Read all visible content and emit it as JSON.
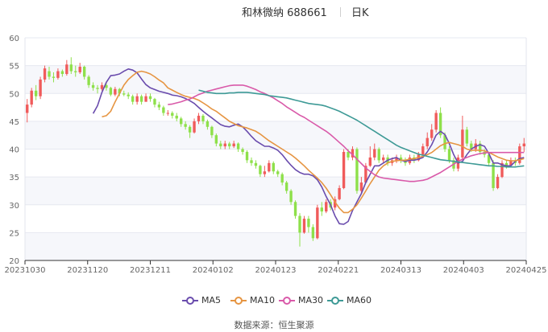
{
  "header": {
    "stock_name": "和林微纳 688661",
    "period": "日K"
  },
  "footer": {
    "source_label": "数据来源：",
    "source_name": "恒生聚源"
  },
  "colors": {
    "up": "#f05b5b",
    "down": "#8ee04a",
    "MA5": "#6a4cad",
    "MA10": "#e69542",
    "MA30": "#d95aa9",
    "MA60": "#3e9a96",
    "grid": "#e6e8f0",
    "axis": "#666666"
  },
  "chart_data": {
    "type": "candlestick",
    "title": "",
    "y_ticks": [
      "60",
      "55",
      "50",
      "45",
      "40",
      "35",
      "30",
      "25",
      "20"
    ],
    "ylim": [
      20,
      60
    ],
    "x_ticks": [
      "20231030",
      "20231120",
      "20231211",
      "20240102",
      "20240123",
      "20240221",
      "20240313",
      "20240403",
      "20240425"
    ],
    "grid": true,
    "legend_position": "bottom",
    "legend": [
      "MA5",
      "MA10",
      "MA30",
      "MA60"
    ],
    "candles": [
      [
        46.5,
        48.0,
        44.8,
        49.0
      ],
      [
        48.0,
        50.5,
        47.5,
        51.0
      ],
      [
        50.5,
        49.5,
        48.8,
        51.5
      ],
      [
        49.5,
        52.5,
        49.0,
        53.0
      ],
      [
        52.5,
        54.5,
        52.0,
        55.0
      ],
      [
        54.0,
        53.0,
        52.5,
        54.8
      ],
      [
        53.0,
        52.8,
        52.0,
        53.8
      ],
      [
        52.8,
        54.0,
        52.5,
        54.5
      ],
      [
        54.0,
        53.5,
        53.0,
        54.3
      ],
      [
        53.5,
        55.2,
        53.2,
        56.0
      ],
      [
        55.2,
        54.0,
        53.5,
        56.5
      ],
      [
        54.0,
        53.8,
        53.0,
        55.0
      ],
      [
        53.8,
        54.8,
        53.5,
        55.5
      ],
      [
        54.8,
        53.0,
        52.5,
        55.0
      ],
      [
        53.0,
        51.5,
        51.0,
        53.3
      ],
      [
        51.5,
        51.0,
        50.5,
        52.0
      ],
      [
        51.0,
        50.8,
        50.0,
        51.5
      ],
      [
        50.8,
        51.5,
        50.5,
        52.0
      ],
      [
        51.5,
        51.0,
        50.5,
        52.0
      ],
      [
        51.0,
        49.8,
        49.5,
        51.2
      ],
      [
        49.8,
        50.8,
        49.5,
        51.2
      ],
      [
        50.8,
        50.0,
        49.5,
        51.0
      ],
      [
        50.0,
        49.8,
        49.5,
        50.5
      ],
      [
        49.8,
        49.5,
        49.0,
        50.2
      ],
      [
        49.5,
        48.5,
        48.0,
        49.8
      ],
      [
        48.5,
        49.5,
        48.0,
        50.0
      ],
      [
        49.5,
        48.5,
        48.0,
        49.8
      ],
      [
        48.5,
        49.5,
        48.5,
        50.0
      ],
      [
        49.5,
        49.0,
        48.5,
        50.0
      ],
      [
        49.0,
        48.0,
        47.5,
        49.2
      ],
      [
        48.0,
        47.5,
        47.0,
        48.5
      ],
      [
        47.5,
        46.5,
        46.0,
        47.8
      ],
      [
        46.5,
        46.5,
        46.0,
        47.0
      ],
      [
        46.5,
        46.0,
        45.5,
        46.8
      ],
      [
        46.0,
        45.5,
        45.0,
        46.5
      ],
      [
        45.5,
        44.5,
        44.0,
        45.8
      ],
      [
        44.5,
        44.0,
        43.5,
        45.0
      ],
      [
        44.0,
        43.0,
        42.0,
        44.3
      ],
      [
        43.0,
        45.0,
        42.8,
        45.5
      ],
      [
        45.0,
        46.0,
        44.5,
        46.5
      ],
      [
        46.0,
        45.0,
        44.5,
        46.3
      ],
      [
        45.0,
        44.0,
        43.5,
        45.3
      ],
      [
        44.0,
        42.5,
        42.0,
        44.2
      ],
      [
        42.5,
        41.0,
        40.5,
        42.8
      ],
      [
        41.0,
        40.5,
        40.0,
        41.5
      ],
      [
        40.5,
        41.0,
        40.0,
        41.5
      ],
      [
        41.0,
        40.5,
        40.0,
        41.3
      ],
      [
        40.5,
        41.0,
        40.2,
        41.5
      ],
      [
        41.0,
        40.0,
        39.5,
        41.2
      ],
      [
        40.0,
        39.5,
        39.0,
        40.3
      ],
      [
        39.5,
        38.0,
        37.5,
        39.8
      ],
      [
        38.0,
        37.5,
        37.0,
        38.5
      ],
      [
        37.5,
        37.0,
        36.5,
        38.0
      ],
      [
        37.0,
        35.5,
        35.0,
        37.2
      ],
      [
        35.5,
        36.0,
        35.0,
        37.0
      ],
      [
        36.0,
        37.5,
        35.8,
        38.0
      ],
      [
        37.5,
        36.0,
        35.5,
        37.8
      ],
      [
        36.0,
        35.5,
        35.0,
        36.3
      ],
      [
        35.5,
        34.0,
        33.5,
        35.8
      ],
      [
        34.0,
        32.5,
        32.0,
        34.3
      ],
      [
        32.5,
        30.5,
        30.0,
        32.8
      ],
      [
        30.5,
        28.0,
        27.5,
        30.8
      ],
      [
        28.0,
        25.0,
        22.5,
        28.5
      ],
      [
        25.0,
        27.5,
        24.8,
        28.0
      ],
      [
        27.5,
        26.0,
        25.0,
        28.0
      ],
      [
        26.0,
        24.0,
        23.5,
        26.5
      ],
      [
        24.0,
        29.5,
        23.8,
        30.0
      ],
      [
        29.5,
        28.8,
        28.0,
        30.5
      ],
      [
        28.8,
        30.5,
        28.5,
        31.0
      ],
      [
        30.5,
        29.5,
        29.0,
        31.0
      ],
      [
        29.5,
        31.0,
        29.0,
        31.5
      ],
      [
        31.0,
        33.0,
        30.8,
        33.5
      ],
      [
        33.0,
        39.5,
        32.8,
        40.0
      ],
      [
        39.5,
        38.5,
        38.0,
        40.0
      ],
      [
        38.5,
        40.0,
        38.0,
        40.5
      ],
      [
        40.0,
        32.5,
        32.0,
        40.3
      ],
      [
        32.5,
        34.0,
        32.0,
        35.0
      ],
      [
        34.0,
        37.0,
        33.8,
        37.5
      ],
      [
        37.0,
        38.5,
        36.8,
        40.5
      ],
      [
        38.5,
        40.0,
        38.0,
        41.0
      ],
      [
        40.0,
        38.0,
        37.5,
        40.3
      ],
      [
        38.0,
        38.5,
        37.5,
        39.0
      ],
      [
        38.5,
        37.5,
        37.0,
        39.0
      ],
      [
        37.5,
        38.0,
        37.0,
        38.5
      ],
      [
        38.0,
        38.5,
        37.5,
        39.0
      ],
      [
        38.5,
        38.0,
        37.5,
        39.0
      ],
      [
        38.0,
        37.5,
        37.0,
        38.5
      ],
      [
        37.5,
        38.5,
        37.2,
        39.0
      ],
      [
        38.5,
        38.0,
        37.5,
        39.0
      ],
      [
        38.0,
        39.0,
        37.8,
        39.5
      ],
      [
        39.0,
        40.5,
        38.8,
        41.0
      ],
      [
        40.5,
        42.0,
        40.0,
        43.0
      ],
      [
        42.0,
        43.5,
        41.5,
        44.5
      ],
      [
        43.5,
        46.5,
        43.0,
        47.0
      ],
      [
        46.5,
        42.5,
        42.0,
        47.5
      ],
      [
        42.5,
        40.0,
        39.5,
        43.0
      ],
      [
        40.0,
        38.0,
        37.5,
        40.5
      ],
      [
        38.0,
        36.5,
        36.0,
        38.5
      ],
      [
        36.5,
        38.5,
        36.0,
        39.0
      ],
      [
        38.5,
        43.5,
        38.0,
        46.0
      ],
      [
        43.5,
        41.0,
        40.5,
        44.0
      ],
      [
        41.0,
        40.0,
        39.5,
        41.5
      ],
      [
        40.0,
        41.0,
        39.5,
        41.8
      ],
      [
        41.0,
        39.5,
        39.0,
        41.5
      ],
      [
        39.5,
        39.0,
        38.5,
        40.0
      ],
      [
        39.0,
        37.5,
        37.0,
        39.5
      ],
      [
        37.5,
        33.0,
        32.5,
        38.0
      ],
      [
        33.0,
        35.0,
        32.8,
        35.5
      ],
      [
        35.0,
        37.5,
        34.8,
        38.0
      ],
      [
        37.5,
        37.0,
        36.5,
        38.0
      ],
      [
        37.0,
        38.0,
        36.8,
        38.5
      ],
      [
        38.0,
        37.5,
        37.0,
        38.5
      ],
      [
        37.5,
        40.5,
        37.2,
        41.0
      ],
      [
        40.5,
        41.0,
        39.5,
        42.0
      ]
    ],
    "series": [
      {
        "name": "MA5",
        "values": [
          46.4,
          47.8,
          50.2,
          52.0,
          53.2,
          53.3,
          53.5,
          54.0,
          54.4,
          54.2,
          53.7,
          52.6,
          51.6,
          51.0,
          50.7,
          50.4,
          50.2,
          50.0,
          49.7,
          49.6,
          49.4,
          49.1,
          48.7,
          48.2,
          47.5,
          46.8,
          46.2,
          45.6,
          45.0,
          44.4,
          44.1,
          44.0,
          44.3,
          44.5,
          44.0,
          43.2,
          42.3,
          41.5,
          41.0,
          40.5,
          40.5,
          40.2,
          39.8,
          39.0,
          38.0,
          37.1,
          36.3,
          35.8,
          35.5,
          35.5,
          35.2,
          34.5,
          33.2,
          31.5,
          30.0,
          28.0,
          26.6,
          26.5,
          27.0,
          29.0,
          30.5,
          32.0,
          34.0,
          35.5,
          37.0,
          37.0,
          37.5,
          38.0,
          38.3,
          38.5,
          38.0,
          37.8,
          38.0,
          38.0,
          38.2,
          38.5,
          39.5,
          40.8,
          42.5,
          43.2,
          42.6,
          41.0,
          39.0,
          37.5,
          37.8,
          39.0,
          40.0,
          40.5,
          40.8,
          40.5,
          39.2,
          37.5,
          37.5,
          37.2,
          37.0,
          37.0,
          37.8,
          38.3,
          38.5
        ]
      },
      {
        "name": "MA10",
        "values": [
          45.8,
          46.0,
          46.8,
          48.5,
          50.0,
          51.5,
          52.5,
          53.2,
          53.8,
          54.0,
          53.8,
          53.5,
          53.0,
          52.4,
          51.9,
          51.0,
          50.6,
          50.2,
          49.8,
          49.5,
          49.3,
          49.1,
          48.8,
          48.3,
          47.8,
          47.2,
          46.8,
          46.2,
          45.6,
          45.0,
          44.6,
          44.2,
          44.0,
          43.8,
          43.5,
          43.2,
          42.7,
          42.1,
          41.5,
          41.0,
          40.5,
          40.0,
          39.5,
          39.0,
          38.4,
          37.7,
          37.0,
          36.2,
          35.5,
          34.8,
          34.0,
          33.0,
          31.8,
          30.5,
          29.4,
          28.6,
          28.6,
          29.2,
          30.0,
          31.2,
          32.5,
          33.8,
          35.0,
          36.2,
          37.0,
          37.5,
          37.8,
          37.9,
          38.0,
          38.0,
          38.2,
          38.3,
          38.5,
          38.7,
          39.0,
          39.4,
          40.0,
          40.6,
          41.0,
          41.2,
          41.0,
          40.8,
          40.5,
          40.0,
          39.8,
          39.8,
          39.8,
          39.7,
          39.4,
          39.0,
          38.6,
          38.3,
          38.0,
          37.9,
          37.9,
          38.1,
          38.3
        ]
      },
      {
        "name": "MA30",
        "values": [
          48.0,
          48.1,
          48.3,
          48.5,
          48.8,
          49.0,
          49.4,
          49.8,
          50.1,
          50.4,
          50.6,
          50.8,
          51.0,
          51.2,
          51.4,
          51.5,
          51.5,
          51.5,
          51.3,
          51.0,
          50.7,
          50.3,
          50.0,
          49.6,
          49.2,
          48.7,
          48.2,
          47.6,
          47.1,
          46.6,
          46.1,
          45.7,
          45.2,
          44.7,
          44.2,
          43.7,
          43.2,
          42.6,
          41.9,
          41.2,
          40.5,
          39.7,
          39.0,
          38.2,
          37.4,
          36.6,
          36.0,
          35.4,
          35.0,
          34.8,
          34.7,
          34.6,
          34.5,
          34.4,
          34.3,
          34.2,
          34.2,
          34.3,
          34.4,
          34.6,
          35.0,
          35.4,
          35.8,
          36.3,
          36.8,
          37.3,
          37.8,
          38.2,
          38.5,
          38.8,
          39.0,
          39.2,
          39.3,
          39.4,
          39.4,
          39.4,
          39.4,
          39.4,
          39.4,
          39.4,
          39.4,
          39.4
        ]
      },
      {
        "name": "MA60",
        "values": [
          50.6,
          50.4,
          50.2,
          50.1,
          50.0,
          50.0,
          50.0,
          50.1,
          50.1,
          50.2,
          50.2,
          50.2,
          50.1,
          50.0,
          49.9,
          49.8,
          49.6,
          49.5,
          49.4,
          49.3,
          49.2,
          49.0,
          48.8,
          48.6,
          48.4,
          48.2,
          48.1,
          48.0,
          47.9,
          47.7,
          47.4,
          47.1,
          46.8,
          46.4,
          46.0,
          45.6,
          45.2,
          44.7,
          44.2,
          43.7,
          43.2,
          42.7,
          42.2,
          41.7,
          41.2,
          40.7,
          40.3,
          40.0,
          39.7,
          39.4,
          39.1,
          38.9,
          38.7,
          38.5,
          38.3,
          38.1,
          38.0,
          37.9,
          37.8,
          37.7,
          37.6,
          37.5,
          37.4,
          37.3,
          37.2,
          37.1,
          37.0,
          37.0,
          36.9,
          36.9,
          36.8,
          36.8,
          36.8,
          36.9,
          37.0
        ]
      }
    ]
  }
}
